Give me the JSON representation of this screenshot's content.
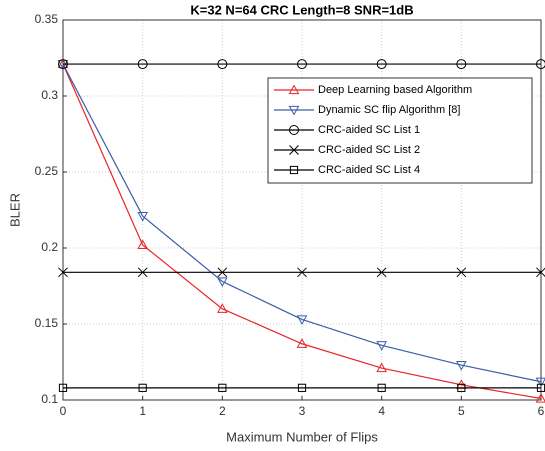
{
  "chart_data": {
    "type": "line",
    "title": "K=32 N=64 CRC Length=8 SNR=1dB",
    "xlabel": "Maximum Number of Flips",
    "ylabel": "BLER",
    "x": [
      0,
      1,
      2,
      3,
      4,
      5,
      6
    ],
    "series": [
      {
        "name": "Deep Learning based Algorithm",
        "color": "#e8262a",
        "marker": "triangle-up",
        "values": [
          0.321,
          0.202,
          0.16,
          0.137,
          0.121,
          0.11,
          0.101
        ]
      },
      {
        "name": "Dynamic SC flip Algorithm [8]",
        "color": "#3a5fa8",
        "marker": "triangle-down",
        "values": [
          0.321,
          0.221,
          0.178,
          0.153,
          0.136,
          0.123,
          0.112
        ]
      },
      {
        "name": "CRC-aided SC List 1",
        "color": "#000000",
        "marker": "circle",
        "values": [
          0.321,
          0.321,
          0.321,
          0.321,
          0.321,
          0.321,
          0.321
        ]
      },
      {
        "name": "CRC-aided SC List 2",
        "color": "#000000",
        "marker": "x",
        "values": [
          0.184,
          0.184,
          0.184,
          0.184,
          0.184,
          0.184,
          0.184
        ]
      },
      {
        "name": "CRC-aided SC List 4",
        "color": "#000000",
        "marker": "square",
        "values": [
          0.108,
          0.108,
          0.108,
          0.108,
          0.108,
          0.108,
          0.108
        ]
      }
    ],
    "xlim": [
      0,
      6
    ],
    "xticks": [
      0,
      1,
      2,
      3,
      4,
      5,
      6
    ],
    "ylim": [
      0.1,
      0.35
    ],
    "yticks": [
      0.1,
      0.15,
      0.2,
      0.25,
      0.3,
      0.35
    ],
    "grid": true,
    "legend": "upper right"
  }
}
